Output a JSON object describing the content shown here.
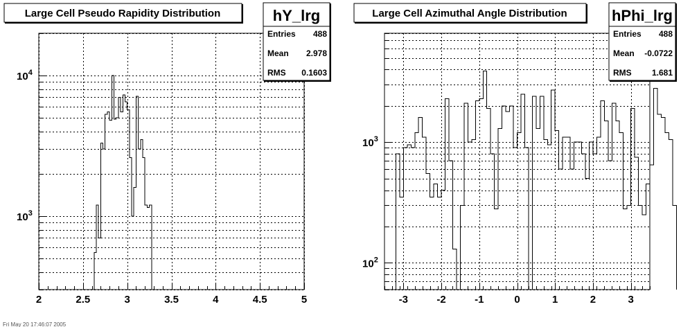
{
  "chart_data": [
    {
      "type": "histogram",
      "title": "Large Cell Pseudo Rapidity Distribution",
      "name": "hY_lrg",
      "stats": [
        {
          "label": "Entries",
          "value": "488"
        },
        {
          "label": "Mean",
          "value": "2.978"
        },
        {
          "label": "RMS",
          "value": "0.1603"
        }
      ],
      "xlim": [
        2,
        5
      ],
      "ylim": [
        300,
        20000
      ],
      "ylog": true,
      "xticks": [
        {
          "v": 2,
          "label": "2"
        },
        {
          "v": 2.5,
          "label": "2.5"
        },
        {
          "v": 3,
          "label": "3"
        },
        {
          "v": 3.5,
          "label": "3.5"
        },
        {
          "v": 4,
          "label": "4"
        },
        {
          "v": 4.5,
          "label": "4.5"
        },
        {
          "v": 5,
          "label": "5"
        }
      ],
      "yticks": [
        {
          "v": 1000,
          "base": "10",
          "exp": "3"
        },
        {
          "v": 10000,
          "base": "10",
          "exp": "4"
        }
      ],
      "grid": true,
      "bin_start": 2.625,
      "bin_width": 0.025,
      "values": [
        550,
        1200,
        700,
        3300,
        3000,
        5300,
        5500,
        4800,
        10000,
        4900,
        5000,
        7000,
        5500,
        7300,
        6500,
        5700,
        2600,
        1000,
        1600,
        7100,
        3000,
        3500,
        2600,
        1200,
        1150,
        1200,
        250
      ]
    },
    {
      "type": "histogram",
      "title": "Large Cell Azimuthal Angle Distribution",
      "name": "hPhi_lrg",
      "stats": [
        {
          "label": "Entries",
          "value": "488"
        },
        {
          "label": "Mean",
          "value": "-0.0722"
        },
        {
          "label": "RMS",
          "value": "1.681"
        }
      ],
      "xlim": [
        -3.5,
        3.5
      ],
      "ylim": [
        60,
        8000
      ],
      "ylog": true,
      "xticks": [
        {
          "v": -3,
          "label": "-3"
        },
        {
          "v": -2,
          "label": "-2"
        },
        {
          "v": -1,
          "label": "-1"
        },
        {
          "v": 0,
          "label": "0"
        },
        {
          "v": 1,
          "label": "1"
        },
        {
          "v": 2,
          "label": "2"
        },
        {
          "v": 3,
          "label": "3"
        }
      ],
      "yticks": [
        {
          "v": 100,
          "base": "10",
          "exp": "2"
        },
        {
          "v": 1000,
          "base": "10",
          "exp": "3"
        }
      ],
      "grid": true,
      "bin_start": -3.2,
      "bin_width": 0.1,
      "values": [
        800,
        350,
        900,
        950,
        900,
        1200,
        1600,
        1100,
        550,
        350,
        450,
        350,
        400,
        2300,
        700,
        130,
        60,
        300,
        2100,
        1000,
        1050,
        2200,
        2300,
        3900,
        1900,
        800,
        280,
        1300,
        2000,
        1800,
        2000,
        900,
        1200,
        2500,
        900,
        50,
        2400,
        1300,
        2400,
        1050,
        950,
        2700,
        1250,
        600,
        1100,
        1100,
        600,
        1000,
        1000,
        800,
        500,
        1000,
        800,
        1100,
        2200,
        1500,
        700,
        2100,
        1500,
        1200,
        280,
        300,
        1900,
        750,
        300,
        250,
        450,
        650,
        2800,
        1700,
        1600,
        1200,
        1050,
        300
      ]
    }
  ],
  "footer": "Fri May 20 17:46:07 2005"
}
